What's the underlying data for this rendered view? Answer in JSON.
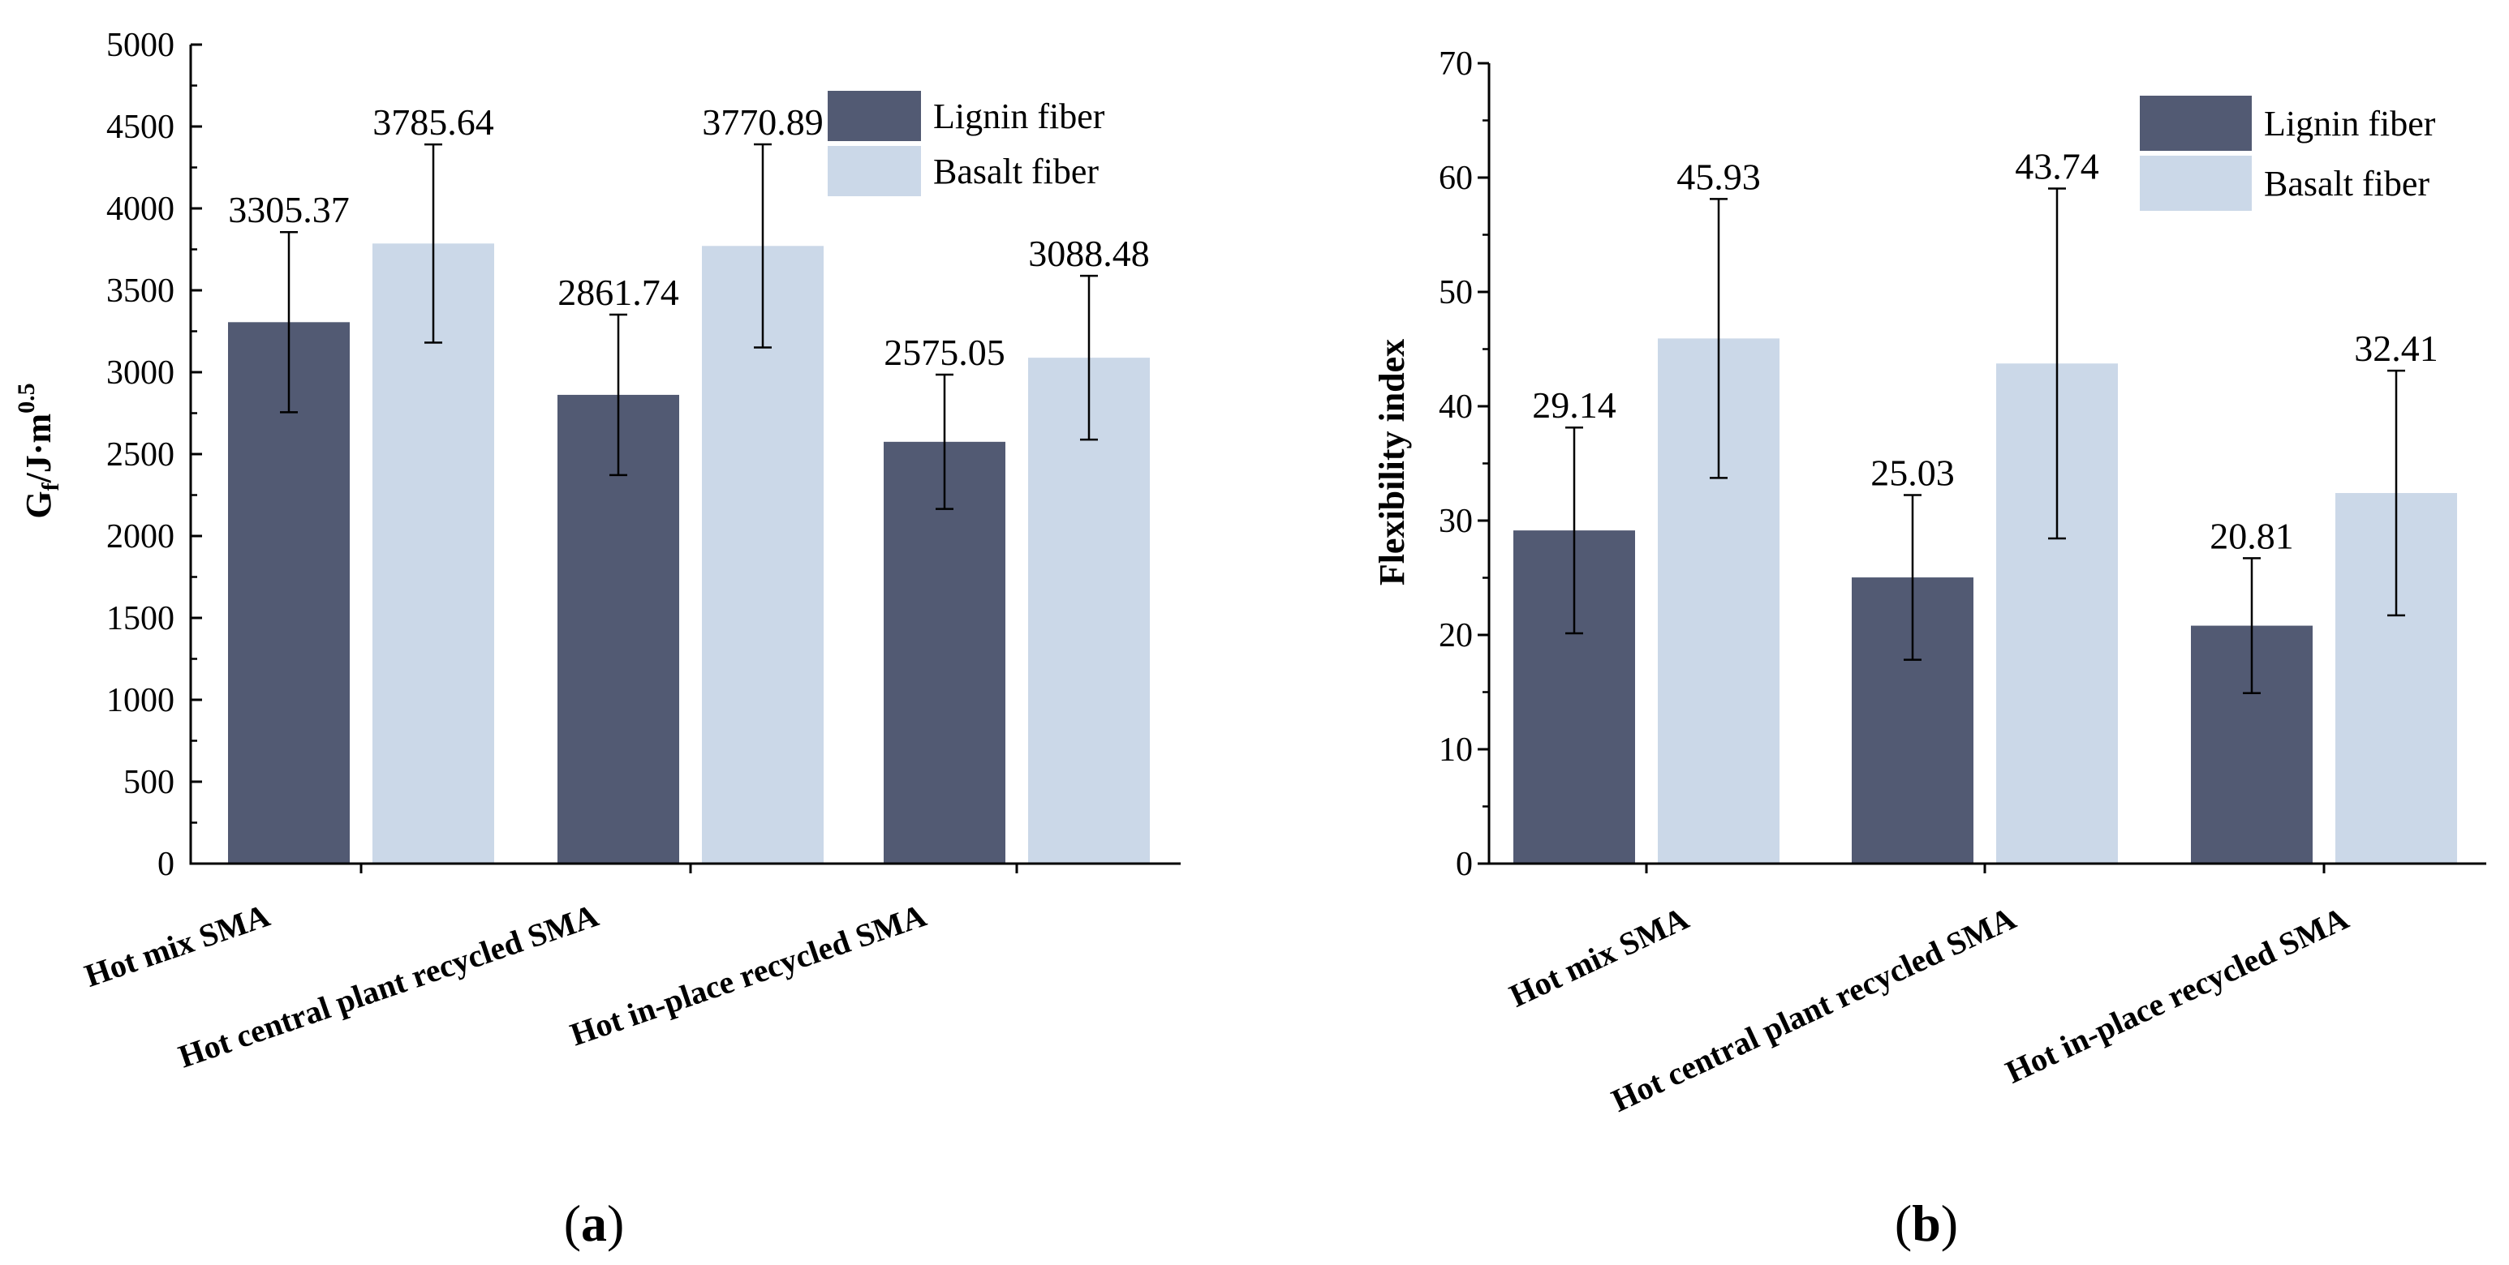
{
  "chart_data": [
    {
      "type": "bar",
      "panel_label": "a",
      "title": "",
      "categories": [
        "Hot mix SMA",
        "Hot central plant recycled SMA",
        "Hot in-place recycled SMA"
      ],
      "series": [
        {
          "name": "Lignin fiber",
          "values": [
            3305.37,
            2861.74,
            2575.05
          ],
          "value_labels": [
            "3305.37",
            "2861.74",
            "2575.05"
          ],
          "errors": [
            550,
            490,
            410
          ],
          "color": "#525a73"
        },
        {
          "name": "Basalt fiber",
          "values": [
            3785.64,
            3770.89,
            3088.48
          ],
          "value_labels": [
            "3785.64",
            "3770.89",
            "3088.48"
          ],
          "errors": [
            605,
            620,
            500
          ],
          "color": "#cbd8e8"
        }
      ],
      "ylabel_main": "G",
      "ylabel_sub": "f",
      "ylabel_rest": "/J·m",
      "ylabel_sup": "0.5",
      "xlabel": "",
      "ylim": [
        0,
        5000
      ],
      "yticks": [
        0,
        500,
        1000,
        1500,
        2000,
        2500,
        3000,
        3500,
        4000,
        4500,
        5000
      ],
      "ytick_labels": [
        "0",
        "500",
        "1000",
        "1500",
        "2000",
        "2500",
        "3000",
        "3500",
        "4000",
        "4500",
        "5000"
      ],
      "legend": "top-right"
    },
    {
      "type": "bar",
      "panel_label": "b",
      "title": "",
      "categories": [
        "Hot mix SMA",
        "Hot central plant recycled SMA",
        "Hot in-place recycled SMA"
      ],
      "series": [
        {
          "name": "Lignin fiber",
          "values": [
            29.14,
            25.03,
            20.81
          ],
          "value_labels": [
            "29.14",
            "25.03",
            "20.81"
          ],
          "errors": [
            9,
            7.2,
            5.9
          ],
          "color": "#525a73"
        },
        {
          "name": "Basalt fiber",
          "values": [
            45.93,
            43.74,
            32.41
          ],
          "value_labels": [
            "45.93",
            "43.74",
            "32.41"
          ],
          "errors": [
            12.2,
            15.3,
            10.7
          ],
          "color": "#cbd8e8"
        }
      ],
      "ylabel": "Flexibility index",
      "xlabel": "",
      "ylim": [
        0,
        70
      ],
      "yticks": [
        0,
        10,
        20,
        30,
        40,
        50,
        60,
        70
      ],
      "ytick_labels": [
        "0",
        "10",
        "20",
        "30",
        "40",
        "50",
        "60",
        "70"
      ],
      "legend": "top-right"
    }
  ]
}
